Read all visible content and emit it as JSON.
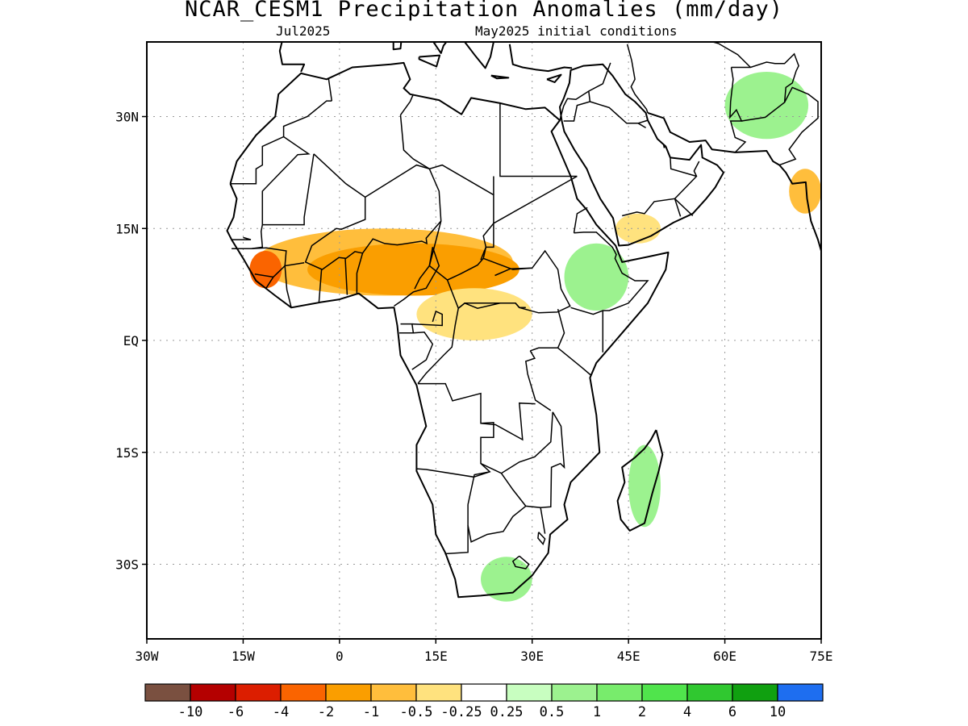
{
  "header": {
    "title": "NCAR_CESM1 Precipitation Anomalies (mm/day)",
    "valid_month": "Jul2025",
    "init_conditions": "May2025 initial conditions"
  },
  "chart_data": {
    "type": "heatmap",
    "title": "NCAR_CESM1 Precipitation Anomalies (mm/day)",
    "units": "mm/day",
    "map_region": "Africa",
    "lon_range": [
      -30,
      75
    ],
    "lat_range": [
      -40,
      40
    ],
    "grid": true,
    "x_ticks": [
      {
        "value": -30,
        "label": "30W"
      },
      {
        "value": -15,
        "label": "15W"
      },
      {
        "value": 0,
        "label": "0"
      },
      {
        "value": 15,
        "label": "15E"
      },
      {
        "value": 30,
        "label": "30E"
      },
      {
        "value": 45,
        "label": "45E"
      },
      {
        "value": 60,
        "label": "60E"
      },
      {
        "value": 75,
        "label": "75E"
      }
    ],
    "y_ticks": [
      {
        "value": 30,
        "label": "30N"
      },
      {
        "value": 15,
        "label": "15N"
      },
      {
        "value": 0,
        "label": "EQ"
      },
      {
        "value": -15,
        "label": "15S"
      },
      {
        "value": -30,
        "label": "30S"
      }
    ],
    "colorbar": {
      "colors": [
        "#7a5040",
        "#b40000",
        "#dc1e00",
        "#fa6400",
        "#fa9e00",
        "#ffbe3c",
        "#ffe27e",
        "#ffffff",
        "#c8fec0",
        "#9cf28f",
        "#78ec6c",
        "#50e44c",
        "#30c830",
        "#10a010",
        "#1e6ef0"
      ],
      "labels": [
        "-10",
        "-6",
        "-4",
        "-2",
        "-1",
        "-0.5",
        "-0.25",
        "0.25",
        "0.5",
        "1",
        "2",
        "4",
        "6",
        "10"
      ]
    },
    "anomaly_areas": [
      {
        "region": "Sahel band",
        "lon_range": [
          -15,
          25
        ],
        "lat_range": [
          9,
          17
        ],
        "value": -0.25
      },
      {
        "region": "West Africa / Sahel",
        "lon_range": [
          -13,
          27
        ],
        "lat_range": [
          6,
          15
        ],
        "value": -1
      },
      {
        "region": "Nigeria / Chad / CAR",
        "lon_range": [
          -5,
          28
        ],
        "lat_range": [
          6,
          13
        ],
        "value": -2
      },
      {
        "region": "Guinea / Sierra Leone",
        "lon_range": [
          -14,
          -9
        ],
        "lat_range": [
          7,
          12
        ],
        "value": -4
      },
      {
        "region": "South Sudan / Congo basin",
        "lon_range": [
          12,
          30
        ],
        "lat_range": [
          0,
          7
        ],
        "value": -0.5
      },
      {
        "region": "Ethiopian highlands",
        "lon_range": [
          35,
          45
        ],
        "lat_range": [
          4,
          13
        ],
        "value": 0.5
      },
      {
        "region": "Yemen",
        "lon_range": [
          43,
          50
        ],
        "lat_range": [
          13,
          17
        ],
        "value": -0.5
      },
      {
        "region": "Pakistan / NW India",
        "lon_range": [
          60,
          73
        ],
        "lat_range": [
          27,
          36
        ],
        "value": 0.5
      },
      {
        "region": "Western India",
        "lon_range": [
          70,
          75
        ],
        "lat_range": [
          17,
          23
        ],
        "value": -1
      },
      {
        "region": "Madagascar east coast",
        "lon_range": [
          45,
          50
        ],
        "lat_range": [
          -25,
          -14
        ],
        "value": 0.5
      },
      {
        "region": "South Africa",
        "lon_range": [
          22,
          30
        ],
        "lat_range": [
          -35,
          -29
        ],
        "value": 0.5
      }
    ]
  }
}
